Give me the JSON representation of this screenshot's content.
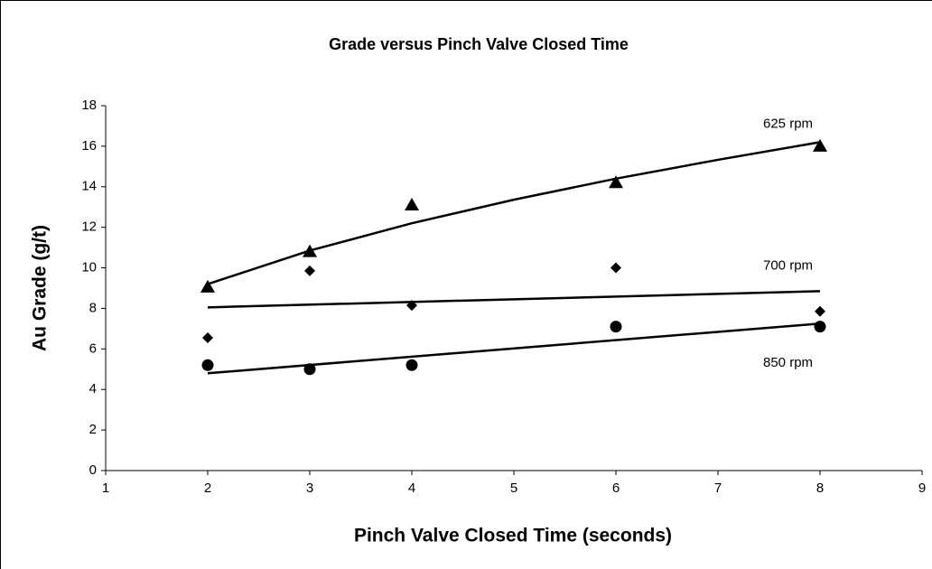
{
  "chart_data": {
    "type": "scatter",
    "title": "Grade versus Pinch Valve Closed Time",
    "x_label": "Pinch Valve Closed Time (seconds)",
    "y_label": "Au Grade (g/t)",
    "xlim": [
      1,
      9
    ],
    "xticks": [
      1,
      2,
      3,
      4,
      5,
      6,
      7,
      8,
      9
    ],
    "ylim": [
      0,
      18
    ],
    "yticks": [
      0,
      2,
      4,
      6,
      8,
      10,
      12,
      14,
      16,
      18
    ],
    "grid": false,
    "series": [
      {
        "name": "625 rpm",
        "color": "#000000",
        "marker": "triangle",
        "x": [
          2,
          3,
          4,
          6,
          8
        ],
        "values": [
          9.05,
          10.8,
          13.1,
          14.2,
          16.0
        ],
        "trendline": {
          "type": "power",
          "x": [
            2,
            3,
            4,
            5,
            6,
            7,
            8
          ],
          "values": [
            9.2,
            10.85,
            12.2,
            13.36,
            14.4,
            15.33,
            16.2
          ]
        }
      },
      {
        "name": "700 rpm",
        "color": "#000000",
        "marker": "diamond",
        "x": [
          2,
          3,
          4,
          6,
          8
        ],
        "values": [
          6.55,
          9.85,
          8.15,
          10.0,
          7.85
        ],
        "trendline": {
          "type": "linear",
          "x": [
            2,
            8
          ],
          "values": [
            8.05,
            8.85
          ]
        }
      },
      {
        "name": "850 rpm",
        "color": "#000000",
        "marker": "circle",
        "x": [
          2,
          3,
          4,
          6,
          8
        ],
        "values": [
          5.2,
          5.0,
          5.2,
          7.1,
          7.1
        ],
        "trendline": {
          "type": "linear",
          "x": [
            2,
            8
          ],
          "values": [
            4.8,
            7.25
          ]
        }
      }
    ]
  }
}
